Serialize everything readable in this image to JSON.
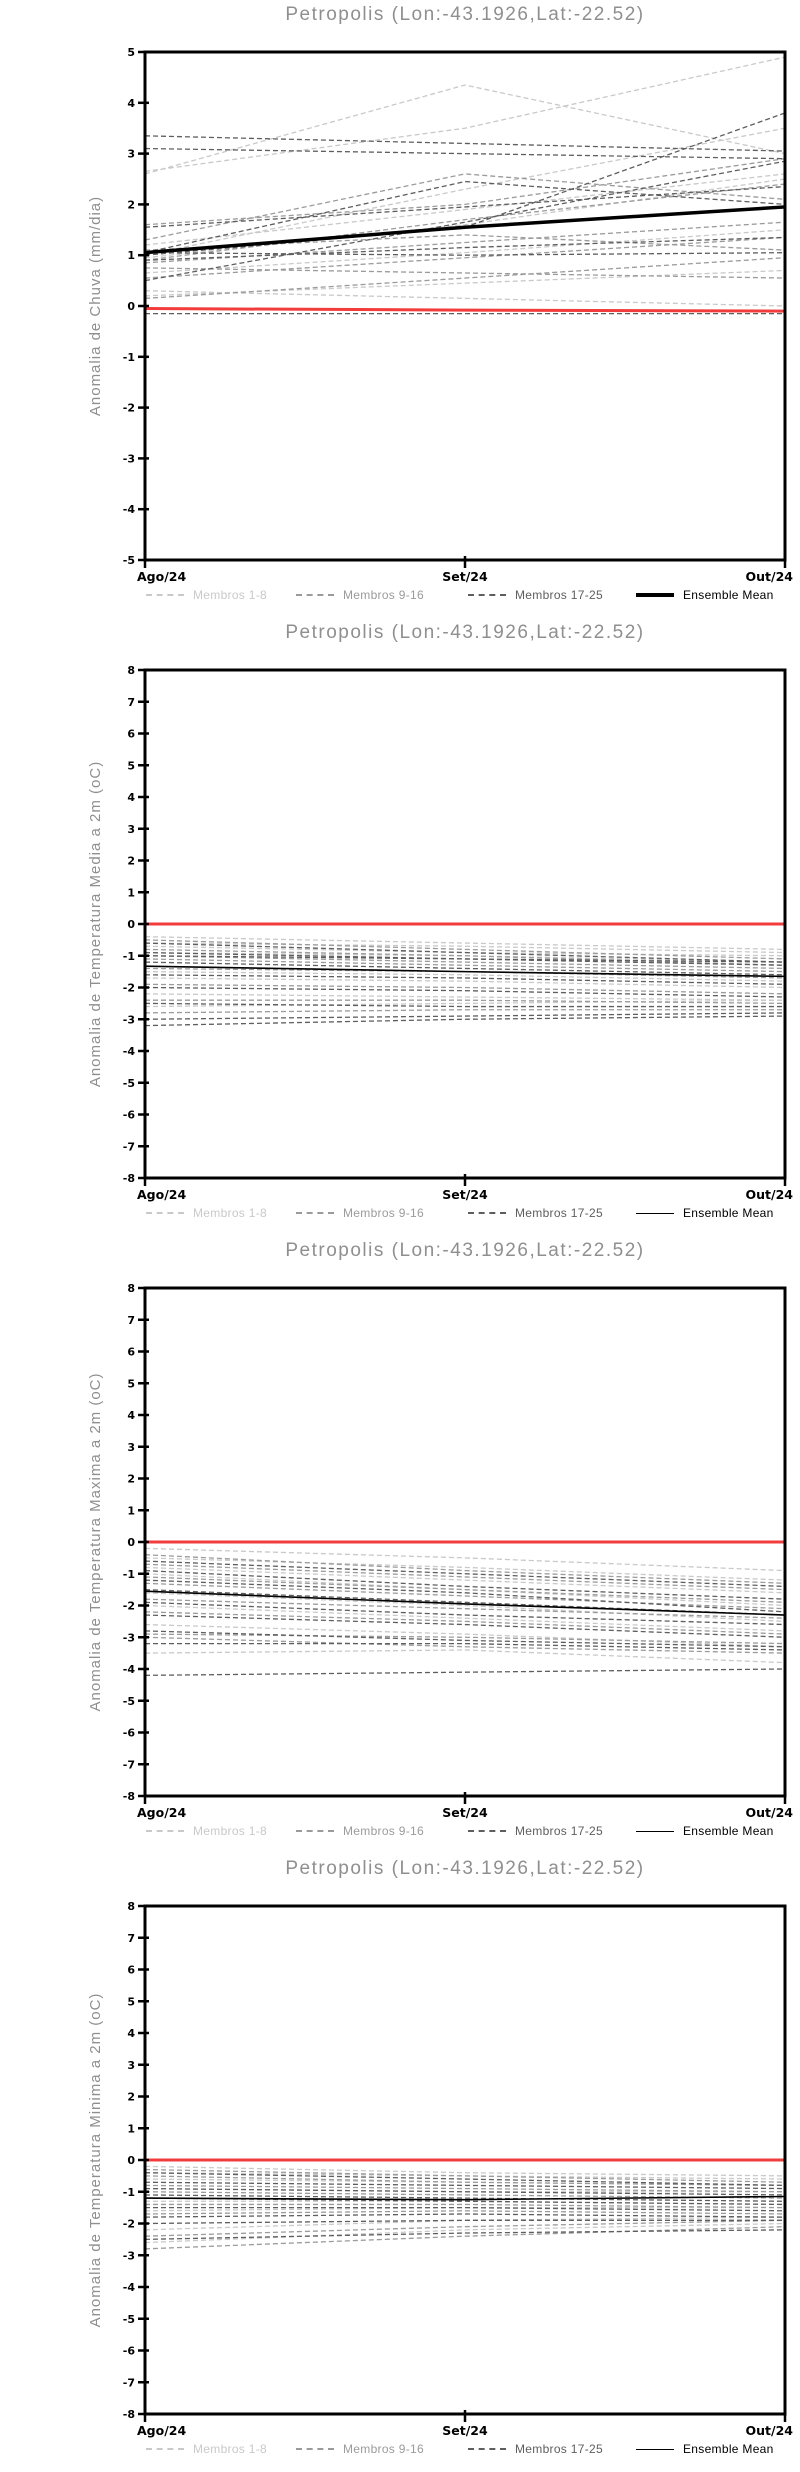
{
  "station": "Petropolis",
  "coords_note": "Lon:-43.1926,Lat:-22.52",
  "x_axis": {
    "labels": [
      "Ago/24",
      "Set/24",
      "Out/24"
    ]
  },
  "colors": {
    "members_1_8": "#c9c9c9",
    "members_9_16": "#9b9b9b",
    "members_17_25": "#5e5e5e",
    "ensemble_mean": "#000000",
    "reference_red": "#f23c3c",
    "title_gray": "#8f8f8f"
  },
  "chart_data": [
    {
      "type": "line",
      "title": "Petropolis (Lon:-43.1926,Lat:-22.52)",
      "ylabel": "Anomalia de Chuva (mm/dia)",
      "x_categories": [
        "Ago/24",
        "Set/24",
        "Out/24"
      ],
      "ylim": [
        -5,
        5
      ],
      "ytick_step": 1,
      "grid": false,
      "legend_position": "bottom",
      "legend": [
        {
          "label": "Membros 1-8",
          "color": "#c9c9c9",
          "style": "dashed",
          "width": 2
        },
        {
          "label": "Membros 9-16",
          "color": "#9b9b9b",
          "style": "dashed",
          "width": 2
        },
        {
          "label": "Membros 17-25",
          "color": "#5e5e5e",
          "style": "dashed",
          "width": 2
        },
        {
          "label": "Ensemble Mean",
          "color": "#000000",
          "style": "solid",
          "width": 4
        }
      ],
      "reference_line": {
        "name": "zero-climatology",
        "color": "#f23c3c",
        "width": 3,
        "values": [
          -0.05,
          -0.08,
          -0.1
        ]
      },
      "series_groups": [
        {
          "name": "Membros 1-8",
          "color": "#c9c9c9",
          "dash": true,
          "members": [
            [
              2.65,
              3.5,
              4.9
            ],
            [
              2.6,
              4.35,
              3.0
            ],
            [
              1.0,
              2.3,
              3.5
            ],
            [
              0.95,
              1.6,
              2.5
            ],
            [
              0.3,
              0.15,
              0.0
            ],
            [
              0.2,
              0.45,
              0.7
            ],
            [
              1.2,
              1.9,
              2.6
            ],
            [
              0.65,
              1.05,
              1.5
            ]
          ]
        },
        {
          "name": "Membros 9-16",
          "color": "#9b9b9b",
          "dash": true,
          "members": [
            [
              1.6,
              2.0,
              2.9
            ],
            [
              0.9,
              1.7,
              2.4
            ],
            [
              0.85,
              1.25,
              1.65
            ],
            [
              0.55,
              0.95,
              1.35
            ],
            [
              1.1,
              1.4,
              1.1
            ],
            [
              0.15,
              0.55,
              0.95
            ],
            [
              0.75,
              0.65,
              0.55
            ],
            [
              1.3,
              2.6,
              2.1
            ]
          ]
        },
        {
          "name": "Membros 17-25",
          "color": "#5e5e5e",
          "dash": true,
          "members": [
            [
              3.35,
              3.2,
              3.05
            ],
            [
              3.1,
              3.0,
              2.9
            ],
            [
              1.55,
              1.95,
              2.35
            ],
            [
              1.0,
              1.55,
              3.8
            ],
            [
              0.9,
              1.15,
              1.35
            ],
            [
              -0.15,
              -0.15,
              -0.15
            ],
            [
              1.05,
              2.45,
              2.0
            ],
            [
              0.5,
              1.65,
              2.85
            ],
            [
              1.05,
              1.0,
              1.05
            ]
          ]
        }
      ],
      "ensemble_mean": {
        "color": "#000000",
        "width": 3.5,
        "values": [
          1.05,
          1.55,
          1.95
        ]
      }
    },
    {
      "type": "line",
      "title": "Petropolis (Lon:-43.1926,Lat:-22.52)",
      "ylabel": "Anomalia de Temperatura Media a 2m (oC)",
      "x_categories": [
        "Ago/24",
        "Set/24",
        "Out/24"
      ],
      "ylim": [
        -8,
        8
      ],
      "ytick_step": 1,
      "grid": false,
      "legend_position": "bottom",
      "legend": [
        {
          "label": "Membros 1-8",
          "color": "#c9c9c9",
          "style": "dashed",
          "width": 2
        },
        {
          "label": "Membros 9-16",
          "color": "#9b9b9b",
          "style": "dashed",
          "width": 2
        },
        {
          "label": "Membros 17-25",
          "color": "#5e5e5e",
          "style": "dashed",
          "width": 2
        },
        {
          "label": "Ensemble Mean",
          "color": "#000000",
          "style": "solid",
          "width": 1.6
        }
      ],
      "reference_line": {
        "name": "zero-climatology",
        "color": "#f23c3c",
        "width": 3,
        "values": [
          0,
          0,
          0
        ]
      },
      "series_groups": [
        {
          "name": "Membros 1-8",
          "color": "#c9c9c9",
          "dash": true,
          "members": [
            [
              -0.4,
              -0.6,
              -0.8
            ],
            [
              -0.6,
              -0.7,
              -0.9
            ],
            [
              -0.7,
              -0.9,
              -1.0
            ],
            [
              -0.9,
              -1.0,
              -1.2
            ],
            [
              -1.5,
              -1.6,
              -1.8
            ],
            [
              -1.7,
              -1.8,
              -2.0
            ],
            [
              -2.2,
              -2.3,
              -2.4
            ],
            [
              -2.6,
              -2.5,
              -2.4
            ]
          ]
        },
        {
          "name": "Membros 9-16",
          "color": "#9b9b9b",
          "dash": true,
          "members": [
            [
              -0.5,
              -0.8,
              -1.1
            ],
            [
              -0.8,
              -1.0,
              -1.3
            ],
            [
              -1.0,
              -1.2,
              -1.4
            ],
            [
              -1.1,
              -1.3,
              -1.5
            ],
            [
              -1.4,
              -1.5,
              -1.7
            ],
            [
              -1.9,
              -2.0,
              -2.2
            ],
            [
              -2.4,
              -2.4,
              -2.5
            ],
            [
              -2.8,
              -2.7,
              -2.7
            ]
          ]
        },
        {
          "name": "Membros 17-25",
          "color": "#5e5e5e",
          "dash": true,
          "members": [
            [
              -0.6,
              -0.9,
              -1.2
            ],
            [
              -0.9,
              -1.1,
              -1.3
            ],
            [
              -1.0,
              -1.1,
              -1.2
            ],
            [
              -1.2,
              -1.4,
              -1.6
            ],
            [
              -1.6,
              -1.7,
              -1.9
            ],
            [
              -2.0,
              -2.1,
              -2.3
            ],
            [
              -2.5,
              -2.6,
              -2.6
            ],
            [
              -3.0,
              -2.9,
              -2.8
            ],
            [
              -3.2,
              -3.0,
              -2.9
            ]
          ]
        }
      ],
      "ensemble_mean": {
        "color": "#000000",
        "width": 1.6,
        "values": [
          -1.33,
          -1.5,
          -1.65
        ]
      }
    },
    {
      "type": "line",
      "title": "Petropolis (Lon:-43.1926,Lat:-22.52)",
      "ylabel": "Anomalia de Temperatura Maxima a 2m (oC)",
      "x_categories": [
        "Ago/24",
        "Set/24",
        "Out/24"
      ],
      "ylim": [
        -8,
        8
      ],
      "ytick_step": 1,
      "grid": false,
      "legend_position": "bottom",
      "legend": [
        {
          "label": "Membros 1-8",
          "color": "#c9c9c9",
          "style": "dashed",
          "width": 2
        },
        {
          "label": "Membros 9-16",
          "color": "#9b9b9b",
          "style": "dashed",
          "width": 2
        },
        {
          "label": "Membros 17-25",
          "color": "#5e5e5e",
          "style": "dashed",
          "width": 2
        },
        {
          "label": "Ensemble Mean",
          "color": "#000000",
          "style": "solid",
          "width": 1.6
        }
      ],
      "reference_line": {
        "name": "zero-climatology",
        "color": "#f23c3c",
        "width": 3,
        "values": [
          0,
          0,
          0
        ]
      },
      "series_groups": [
        {
          "name": "Membros 1-8",
          "color": "#c9c9c9",
          "dash": true,
          "members": [
            [
              -0.2,
              -0.5,
              -0.9
            ],
            [
              -0.5,
              -0.8,
              -1.2
            ],
            [
              -0.8,
              -1.2,
              -1.6
            ],
            [
              -1.0,
              -1.5,
              -2.0
            ],
            [
              -1.6,
              -2.0,
              -2.5
            ],
            [
              -2.0,
              -2.4,
              -2.8
            ],
            [
              -2.6,
              -2.9,
              -3.3
            ],
            [
              -3.5,
              -3.4,
              -3.8
            ]
          ]
        },
        {
          "name": "Membros 9-16",
          "color": "#9b9b9b",
          "dash": true,
          "members": [
            [
              -0.4,
              -0.9,
              -1.3
            ],
            [
              -0.7,
              -1.1,
              -1.5
            ],
            [
              -1.1,
              -1.5,
              -1.9
            ],
            [
              -1.3,
              -1.7,
              -2.1
            ],
            [
              -1.8,
              -2.1,
              -2.4
            ],
            [
              -2.2,
              -2.5,
              -2.9
            ],
            [
              -2.9,
              -3.0,
              -3.2
            ],
            [
              -3.0,
              -3.3,
              -3.5
            ]
          ]
        },
        {
          "name": "Membros 17-25",
          "color": "#5e5e5e",
          "dash": true,
          "members": [
            [
              -0.6,
              -1.0,
              -1.4
            ],
            [
              -0.9,
              -1.4,
              -1.8
            ],
            [
              -1.2,
              -1.6,
              -2.2
            ],
            [
              -1.5,
              -1.9,
              -2.3
            ],
            [
              -1.9,
              -2.3,
              -2.6
            ],
            [
              -2.3,
              -2.6,
              -3.0
            ],
            [
              -2.8,
              -3.1,
              -3.3
            ],
            [
              -3.2,
              -3.2,
              -3.4
            ],
            [
              -4.2,
              -4.1,
              -4.0
            ]
          ]
        }
      ],
      "ensemble_mean": {
        "color": "#000000",
        "width": 1.6,
        "values": [
          -1.55,
          -1.95,
          -2.3
        ]
      }
    },
    {
      "type": "line",
      "title": "Petropolis (Lon:-43.1926,Lat:-22.52)",
      "ylabel": "Anomalia de Temperatura Minima a 2m (oC)",
      "x_categories": [
        "Ago/24",
        "Set/24",
        "Out/24"
      ],
      "ylim": [
        -8,
        8
      ],
      "ytick_step": 1,
      "grid": false,
      "legend_position": "bottom",
      "legend": [
        {
          "label": "Membros 1-8",
          "color": "#c9c9c9",
          "style": "dashed",
          "width": 2
        },
        {
          "label": "Membros 9-16",
          "color": "#9b9b9b",
          "style": "dashed",
          "width": 2
        },
        {
          "label": "Membros 17-25",
          "color": "#5e5e5e",
          "style": "dashed",
          "width": 2
        },
        {
          "label": "Ensemble Mean",
          "color": "#000000",
          "style": "solid",
          "width": 1.6
        }
      ],
      "reference_line": {
        "name": "zero-climatology",
        "color": "#f23c3c",
        "width": 3,
        "values": [
          0,
          0,
          0
        ]
      },
      "series_groups": [
        {
          "name": "Membros 1-8",
          "color": "#c9c9c9",
          "dash": true,
          "members": [
            [
              -0.2,
              -0.4,
              -0.5
            ],
            [
              -0.4,
              -0.5,
              -0.6
            ],
            [
              -0.6,
              -0.7,
              -0.8
            ],
            [
              -0.9,
              -1.0,
              -1.0
            ],
            [
              -1.3,
              -1.3,
              -1.4
            ],
            [
              -1.6,
              -1.5,
              -1.5
            ],
            [
              -2.2,
              -1.9,
              -1.8
            ],
            [
              -2.6,
              -2.2,
              -2.0
            ]
          ]
        },
        {
          "name": "Membros 9-16",
          "color": "#9b9b9b",
          "dash": true,
          "members": [
            [
              -0.3,
              -0.5,
              -0.7
            ],
            [
              -0.5,
              -0.7,
              -0.8
            ],
            [
              -0.8,
              -0.9,
              -1.0
            ],
            [
              -1.0,
              -1.1,
              -1.2
            ],
            [
              -1.4,
              -1.4,
              -1.5
            ],
            [
              -1.7,
              -1.6,
              -1.7
            ],
            [
              -2.4,
              -2.1,
              -1.9
            ],
            [
              -2.8,
              -2.4,
              -2.1
            ]
          ]
        },
        {
          "name": "Membros 17-25",
          "color": "#5e5e5e",
          "dash": true,
          "members": [
            [
              -0.4,
              -0.6,
              -0.8
            ],
            [
              -0.7,
              -0.8,
              -0.9
            ],
            [
              -0.9,
              -1.0,
              -1.1
            ],
            [
              -1.1,
              -1.2,
              -1.3
            ],
            [
              -1.5,
              -1.5,
              -1.6
            ],
            [
              -1.8,
              -1.7,
              -1.8
            ],
            [
              -2.0,
              -1.9,
              -1.9
            ],
            [
              -2.5,
              -2.3,
              -2.2
            ],
            [
              -1.2,
              -1.3,
              -1.4
            ]
          ]
        }
      ],
      "ensemble_mean": {
        "color": "#000000",
        "width": 1.6,
        "values": [
          -1.2,
          -1.25,
          -1.15
        ]
      }
    }
  ]
}
